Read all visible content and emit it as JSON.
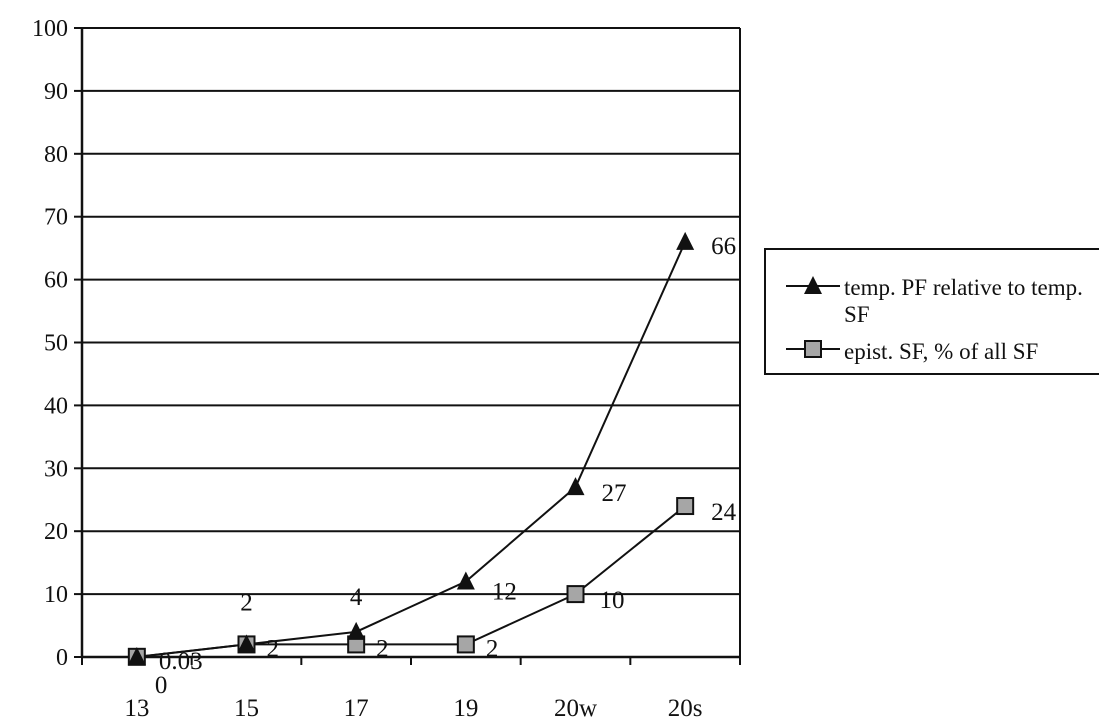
{
  "chart_data": {
    "type": "line",
    "categories": [
      "13",
      "15",
      "17",
      "19",
      "20w",
      "20s"
    ],
    "series": [
      {
        "name": "temp. PF relative to temp. SF",
        "values": [
          0,
          2,
          4,
          12,
          27,
          66
        ],
        "data_labels": [
          "0",
          "2",
          "4",
          "12",
          "27",
          "66"
        ],
        "marker": "triangle",
        "color": "#111111"
      },
      {
        "name": "epist. SF, % of all SF",
        "values": [
          0.03,
          2,
          2,
          2,
          10,
          24
        ],
        "data_labels": [
          "0.03",
          "2",
          "2",
          "2",
          "10",
          "24"
        ],
        "marker": "square",
        "color": "#a6a6a6"
      }
    ],
    "ylim": [
      0,
      100
    ],
    "yticks": [
      0,
      10,
      20,
      30,
      40,
      50,
      60,
      70,
      80,
      90,
      100
    ],
    "title": "",
    "xlabel": "",
    "ylabel": "",
    "grid": "horizontal",
    "legend": "right"
  }
}
